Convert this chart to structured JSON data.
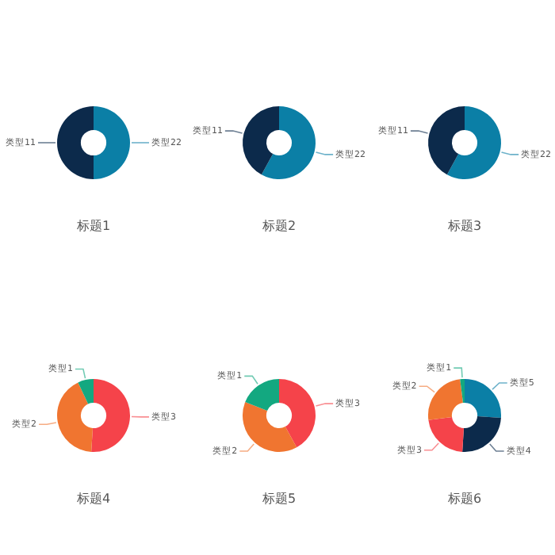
{
  "chart_data": [
    {
      "type": "donut",
      "title": "标题1",
      "categories": [
        "类型22",
        "类型11"
      ],
      "values": [
        50,
        50
      ],
      "colors": [
        "#0b7fa6",
        "#0c2a4b"
      ]
    },
    {
      "type": "donut",
      "title": "标题2",
      "categories": [
        "类型22",
        "类型11"
      ],
      "values": [
        58,
        42
      ],
      "colors": [
        "#0b7fa6",
        "#0c2a4b"
      ]
    },
    {
      "type": "donut",
      "title": "标题3",
      "categories": [
        "类型22",
        "类型11"
      ],
      "values": [
        58,
        42
      ],
      "colors": [
        "#0b7fa6",
        "#0c2a4b"
      ]
    },
    {
      "type": "donut",
      "title": "标题4",
      "categories": [
        "类型3",
        "类型2",
        "类型1"
      ],
      "values": [
        51,
        42,
        7
      ],
      "colors": [
        "#f5434a",
        "#f07530",
        "#13a880"
      ]
    },
    {
      "type": "donut",
      "title": "标题5",
      "categories": [
        "类型3",
        "类型2",
        "类型1"
      ],
      "values": [
        42,
        39,
        19
      ],
      "colors": [
        "#f5434a",
        "#f07530",
        "#13a880"
      ]
    },
    {
      "type": "donut",
      "title": "标题6",
      "categories": [
        "类型5",
        "类型4",
        "类型3",
        "类型2",
        "类型1"
      ],
      "values": [
        26,
        25,
        22,
        25,
        2
      ],
      "colors": [
        "#0b7fa6",
        "#0c2a4b",
        "#f5434a",
        "#f07530",
        "#13a880"
      ]
    }
  ]
}
